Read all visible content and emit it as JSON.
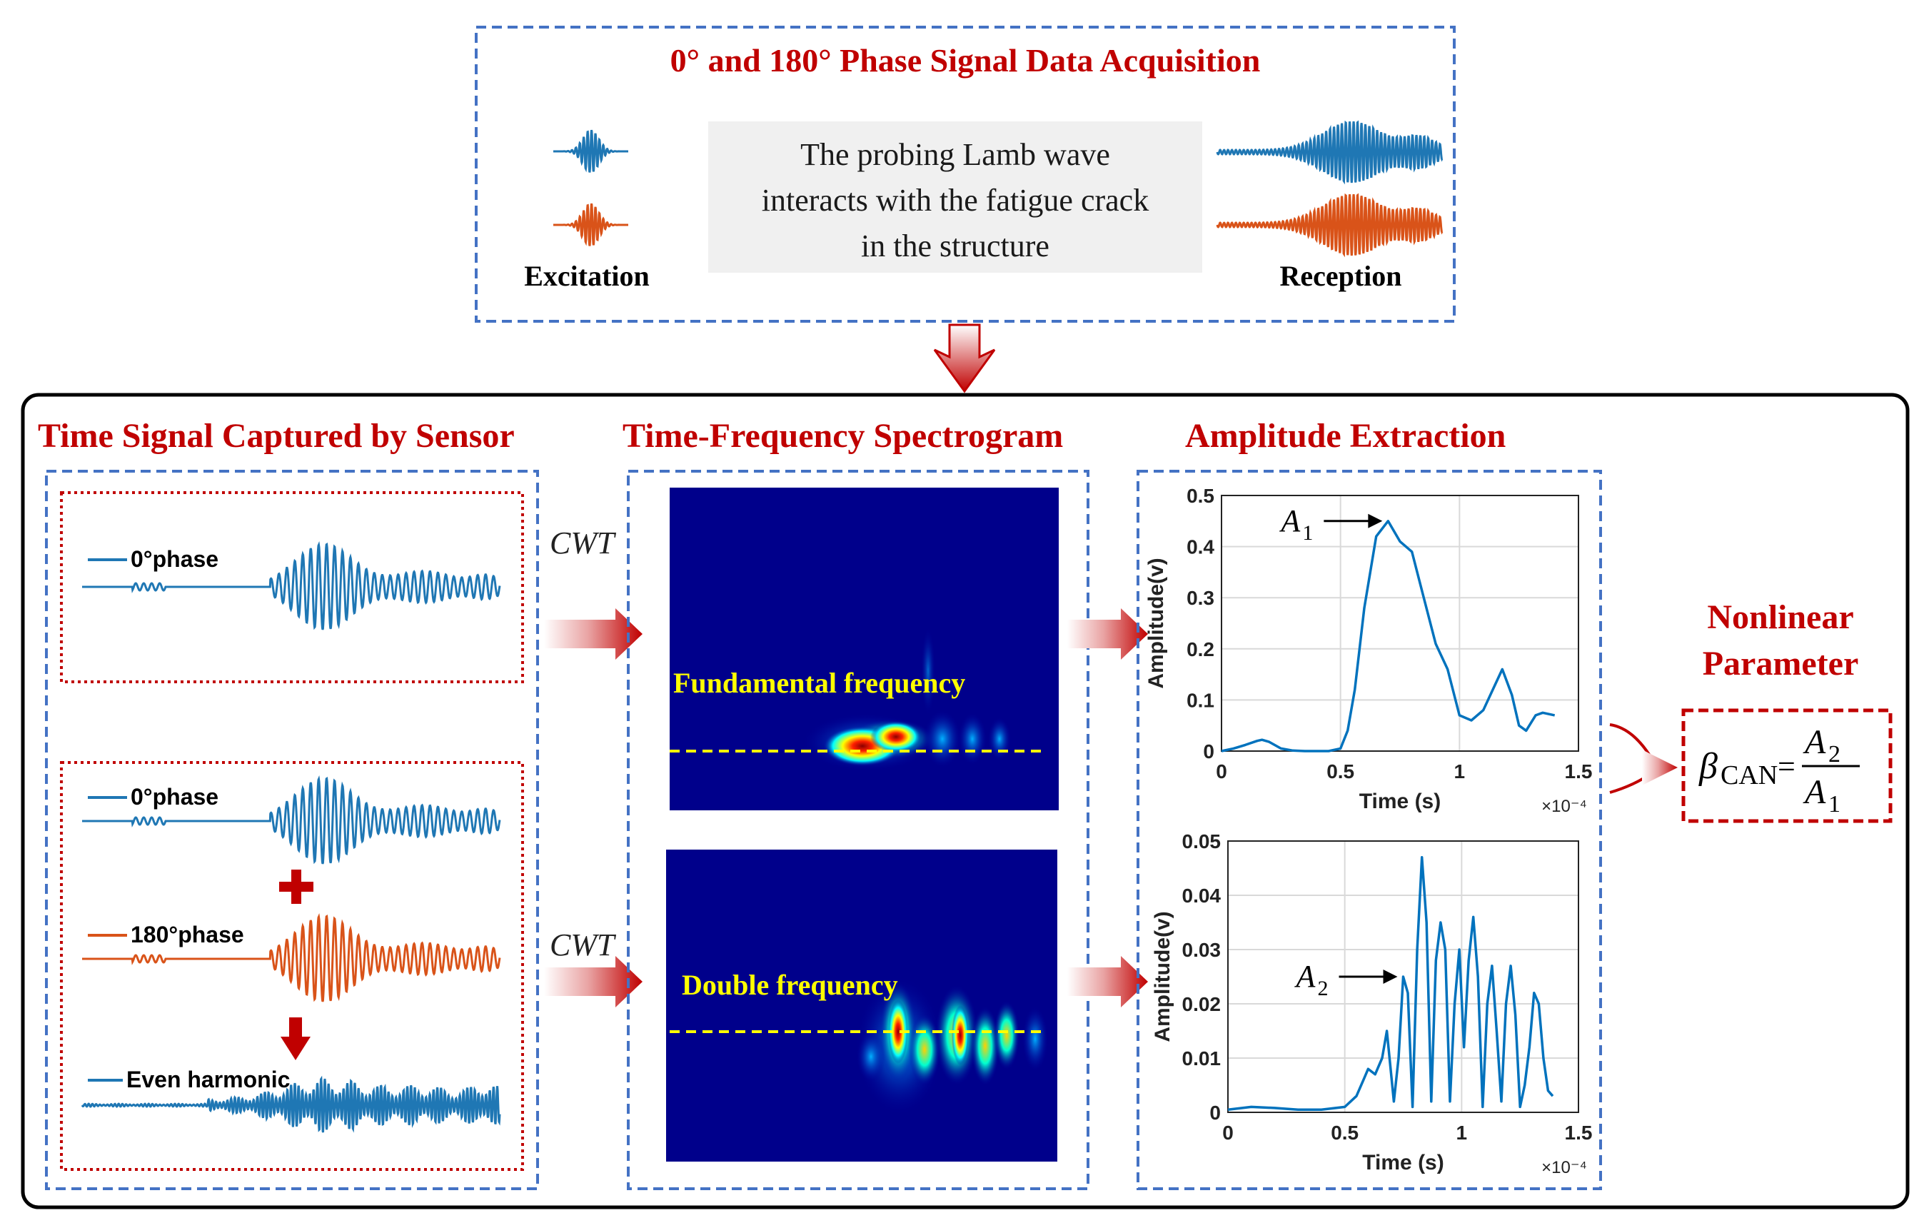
{
  "top_box": {
    "title": "0° and 180° Phase Signal Data Acquisition",
    "description_lines": [
      "The probing Lamb wave",
      "interacts with the fatigue crack",
      "in the structure"
    ],
    "excitation_label": "Excitation",
    "reception_label": "Reception"
  },
  "sections": {
    "time_signal": "Time Signal Captured by Sensor",
    "spectrogram": "Time-Frequency Spectrogram",
    "amplitude": "Amplitude Extraction",
    "nonlinear_line1": "Nonlinear",
    "nonlinear_line2": "Parameter"
  },
  "signals": {
    "phase0": "0°phase",
    "phase0_b": "0°phase",
    "phase180": "180°phase",
    "even": "Even harmonic"
  },
  "cwt_label": "CWT",
  "spectrogram_labels": {
    "fundamental": "Fundamental frequency",
    "double": "Double frequency"
  },
  "formula": {
    "beta": "β",
    "sub": "CAN",
    "eq": "=",
    "num": "A",
    "num_sub": "2",
    "den": "A",
    "den_sub": "1"
  },
  "colors": {
    "blue_signal": "#1f77b4",
    "orange_signal": "#d95319",
    "title_red": "#c00000",
    "dashed_blue": "#4472c4",
    "dotted_red": "#c00000",
    "plot_line": "#0072bd"
  },
  "chart_data": [
    {
      "type": "line",
      "title": "",
      "xlabel": "Time (s)",
      "ylabel": "Amplitude(v)",
      "x_exponent": "×10⁻⁴",
      "xlim": [
        0,
        1.5
      ],
      "ylim": [
        0,
        0.5
      ],
      "xticks": [
        "0",
        "0.5",
        "1",
        "1.5"
      ],
      "yticks": [
        "0",
        "0.1",
        "0.2",
        "0.3",
        "0.4",
        "0.5"
      ],
      "grid": true,
      "annotation": {
        "text": "A",
        "sub": "1",
        "x": 0.7,
        "y": 0.45
      },
      "series": [
        {
          "x": [
            0,
            0.05,
            0.1,
            0.15,
            0.17,
            0.2,
            0.25,
            0.3,
            0.35,
            0.4,
            0.45,
            0.5,
            0.53,
            0.56,
            0.6,
            0.65,
            0.7,
            0.75,
            0.8,
            0.85,
            0.9,
            0.95,
            1.0,
            1.05,
            1.1,
            1.15,
            1.18,
            1.22,
            1.25,
            1.28,
            1.32,
            1.35,
            1.4
          ],
          "y": [
            0,
            0.005,
            0.012,
            0.02,
            0.022,
            0.018,
            0.005,
            0.001,
            0,
            0,
            0,
            0.005,
            0.04,
            0.12,
            0.28,
            0.42,
            0.45,
            0.41,
            0.39,
            0.3,
            0.21,
            0.16,
            0.07,
            0.06,
            0.08,
            0.13,
            0.16,
            0.11,
            0.05,
            0.04,
            0.07,
            0.075,
            0.07
          ]
        }
      ]
    },
    {
      "type": "line",
      "title": "",
      "xlabel": "Time (s)",
      "ylabel": "Amplitude(v)",
      "x_exponent": "×10⁻⁴",
      "xlim": [
        0,
        1.5
      ],
      "ylim": [
        0,
        0.05
      ],
      "xticks": [
        "0",
        "0.5",
        "1",
        "1.5"
      ],
      "yticks": [
        "0",
        "0.01",
        "0.02",
        "0.03",
        "0.04",
        "0.05"
      ],
      "grid": true,
      "annotation": {
        "text": "A",
        "sub": "2",
        "x": 0.75,
        "y": 0.025
      },
      "series": [
        {
          "x": [
            0,
            0.1,
            0.2,
            0.3,
            0.4,
            0.5,
            0.55,
            0.58,
            0.6,
            0.63,
            0.66,
            0.68,
            0.71,
            0.73,
            0.75,
            0.77,
            0.79,
            0.81,
            0.83,
            0.85,
            0.87,
            0.89,
            0.91,
            0.93,
            0.95,
            0.97,
            0.99,
            1.01,
            1.03,
            1.05,
            1.07,
            1.09,
            1.11,
            1.13,
            1.15,
            1.17,
            1.19,
            1.21,
            1.23,
            1.25,
            1.27,
            1.29,
            1.31,
            1.33,
            1.35,
            1.37,
            1.39
          ],
          "y": [
            0.0005,
            0.001,
            0.0008,
            0.0005,
            0.0005,
            0.001,
            0.003,
            0.006,
            0.008,
            0.007,
            0.01,
            0.015,
            0.002,
            0.01,
            0.025,
            0.022,
            0.001,
            0.03,
            0.047,
            0.035,
            0.002,
            0.028,
            0.035,
            0.03,
            0.002,
            0.02,
            0.03,
            0.012,
            0.028,
            0.036,
            0.025,
            0.001,
            0.02,
            0.027,
            0.015,
            0.002,
            0.02,
            0.027,
            0.018,
            0.001,
            0.005,
            0.012,
            0.022,
            0.02,
            0.01,
            0.004,
            0.003
          ]
        }
      ]
    }
  ]
}
